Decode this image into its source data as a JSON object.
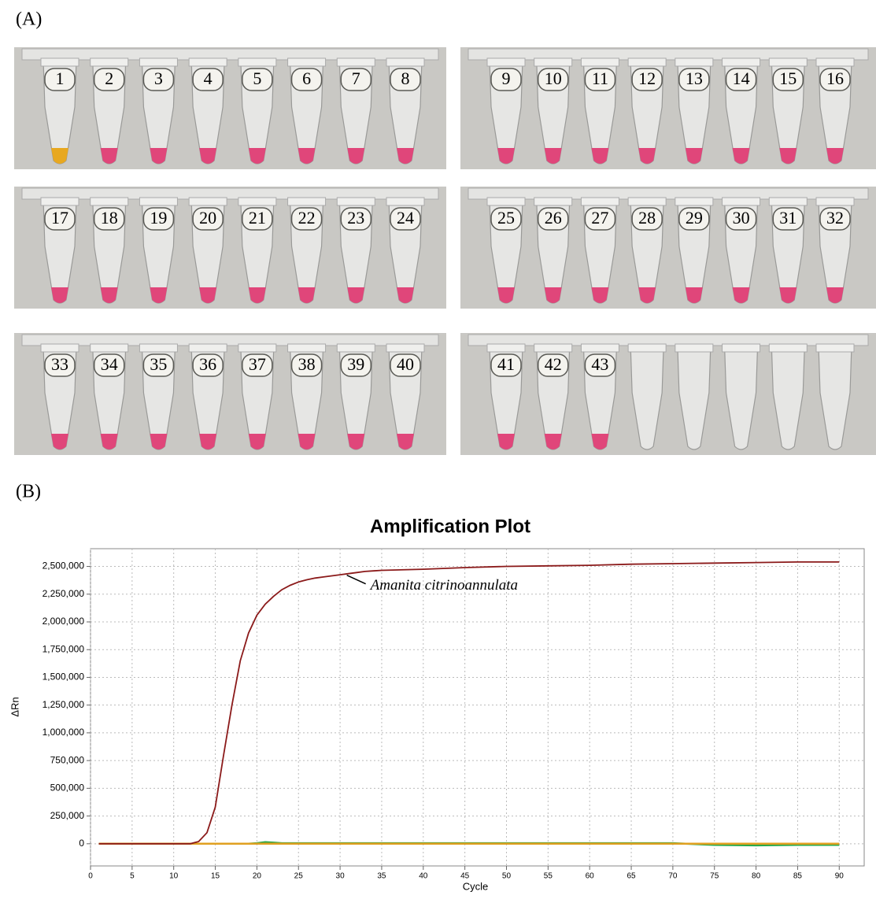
{
  "panels": {
    "a_label": "(A)",
    "b_label": "(B)"
  },
  "tubes": {
    "labels": [
      "1",
      "2",
      "3",
      "4",
      "5",
      "6",
      "7",
      "8",
      "9",
      "10",
      "11",
      "12",
      "13",
      "14",
      "15",
      "16",
      "17",
      "18",
      "19",
      "20",
      "21",
      "22",
      "23",
      "24",
      "25",
      "26",
      "27",
      "28",
      "29",
      "30",
      "31",
      "32",
      "33",
      "34",
      "35",
      "36",
      "37",
      "38",
      "39",
      "40",
      "41",
      "42",
      "43"
    ],
    "colors": [
      "#e8a820",
      "#e0467a",
      "#e0467a",
      "#e0467a",
      "#e0467a",
      "#e0467a",
      "#e0467a",
      "#e0467a",
      "#e0467a",
      "#e0467a",
      "#e0467a",
      "#e0467a",
      "#e0467a",
      "#e0467a",
      "#e0467a",
      "#e0467a",
      "#e0467a",
      "#e0467a",
      "#e0467a",
      "#e0467a",
      "#e0467a",
      "#e0467a",
      "#e0467a",
      "#e0467a",
      "#e0467a",
      "#e0467a",
      "#e0467a",
      "#e0467a",
      "#e0467a",
      "#e0467a",
      "#e0467a",
      "#e0467a",
      "#e0467a",
      "#e0467a",
      "#e0467a",
      "#e0467a",
      "#e0467a",
      "#e0467a",
      "#e0467a",
      "#e0467a",
      "#e0467a",
      "#e0467a",
      "#e0467a"
    ]
  },
  "chart_data": {
    "type": "line",
    "title": "Amplification Plot",
    "x_label": "Cycle",
    "y_label": "ΔRn",
    "x": [
      1,
      2,
      3,
      4,
      5,
      6,
      7,
      8,
      9,
      10,
      11,
      12,
      13,
      14,
      15,
      16,
      17,
      18,
      19,
      20,
      21,
      22,
      23,
      24,
      25,
      26,
      27,
      28,
      29,
      30,
      31,
      32,
      33,
      34,
      35,
      40,
      45,
      50,
      55,
      60,
      65,
      70,
      75,
      80,
      85,
      90
    ],
    "series": [
      {
        "name": "Amanita citrinoannulata",
        "color": "#8b1a1a",
        "values": [
          0,
          0,
          0,
          0,
          0,
          0,
          0,
          0,
          0,
          0,
          0,
          0,
          20000,
          100000,
          330000,
          800000,
          1250000,
          1650000,
          1900000,
          2060000,
          2160000,
          2230000,
          2290000,
          2330000,
          2360000,
          2380000,
          2395000,
          2405000,
          2415000,
          2425000,
          2435000,
          2445000,
          2455000,
          2460000,
          2465000,
          2475000,
          2490000,
          2500000,
          2505000,
          2510000,
          2520000,
          2525000,
          2530000,
          2535000,
          2540000,
          2540000
        ]
      },
      {
        "color": "#e0a020",
        "values": [
          0,
          0,
          0,
          0,
          0,
          0,
          0,
          0,
          0,
          0,
          0,
          0,
          0,
          0,
          0,
          0,
          0,
          0,
          0,
          0,
          0,
          0,
          0,
          0,
          0,
          0,
          0,
          0,
          0,
          0,
          0,
          0,
          0,
          0,
          0,
          0,
          0,
          0,
          0,
          0,
          0,
          0,
          0,
          0,
          0,
          0
        ]
      },
      {
        "color": "#2aa84a",
        "values": [
          0,
          0,
          0,
          0,
          0,
          0,
          0,
          0,
          0,
          0,
          0,
          0,
          0,
          0,
          0,
          0,
          0,
          0,
          0,
          5000,
          15000,
          10000,
          5000,
          5000,
          5000,
          5000,
          5000,
          5000,
          5000,
          5000,
          5000,
          5000,
          5000,
          5000,
          5000,
          5000,
          5000,
          5000,
          5000,
          5000,
          5000,
          5000,
          -10000,
          -15000,
          -10000,
          -10000
        ]
      }
    ],
    "xlim": [
      0,
      93
    ],
    "ylim": [
      -200000,
      2660000
    ],
    "xticks": [
      0,
      5,
      10,
      15,
      20,
      25,
      30,
      35,
      40,
      45,
      50,
      55,
      60,
      65,
      70,
      75,
      80,
      85,
      90
    ],
    "yticks": [
      0,
      {
        "value": 250000,
        "label": "250,000"
      },
      {
        "value": 500000,
        "label": "500,000"
      },
      {
        "value": 750000,
        "label": "750,000"
      },
      {
        "value": 1000000,
        "label": "1,000,000"
      },
      {
        "value": 1250000,
        "label": "1,250,000"
      },
      {
        "value": 1500000,
        "label": "1,500,000"
      },
      {
        "value": 1750000,
        "label": "1,750,000"
      },
      {
        "value": 2000000,
        "label": "2,000,000"
      },
      {
        "value": 2250000,
        "label": "2,250,000"
      },
      {
        "value": 2500000,
        "label": "2,500,000"
      }
    ],
    "grid": true
  }
}
